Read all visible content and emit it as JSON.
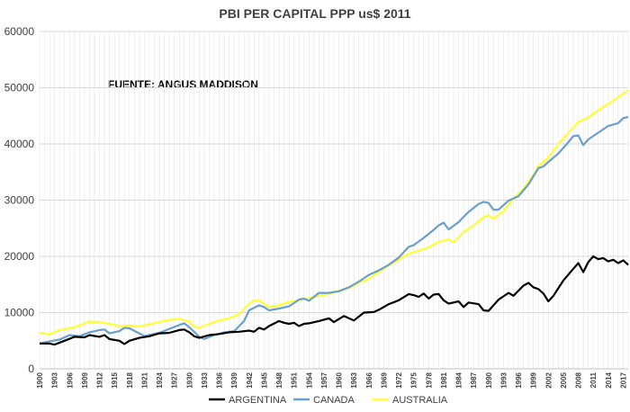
{
  "chart_data": {
    "type": "line",
    "title": "PBI PER CAPITAL PPP us$ 2011",
    "annotation": "FUENTE: ANGUS MADDISON",
    "xlabel": "",
    "ylabel": "",
    "ylim": [
      0,
      60000
    ],
    "yticks": [
      0,
      10000,
      20000,
      30000,
      40000,
      50000,
      60000
    ],
    "xlim": [
      1900,
      2018
    ],
    "xticks": [
      1900,
      1903,
      1906,
      1909,
      1912,
      1915,
      1918,
      1921,
      1924,
      1927,
      1930,
      1933,
      1936,
      1939,
      1942,
      1945,
      1948,
      1951,
      1954,
      1957,
      1960,
      1963,
      1966,
      1969,
      1972,
      1975,
      1978,
      1981,
      1984,
      1987,
      1990,
      1993,
      1996,
      1999,
      2002,
      2005,
      2008,
      2011,
      2014,
      2017
    ],
    "grid": "horizontal and vertical",
    "legend_position": "bottom",
    "series": [
      {
        "name": "ARGENTINA",
        "color": "#000000",
        "points": [
          [
            1900,
            4500
          ],
          [
            1902,
            4500
          ],
          [
            1903,
            4300
          ],
          [
            1905,
            5000
          ],
          [
            1907,
            5700
          ],
          [
            1909,
            5600
          ],
          [
            1910,
            6000
          ],
          [
            1912,
            5700
          ],
          [
            1913,
            6000
          ],
          [
            1914,
            5300
          ],
          [
            1916,
            5000
          ],
          [
            1917,
            4400
          ],
          [
            1918,
            5000
          ],
          [
            1920,
            5500
          ],
          [
            1922,
            5800
          ],
          [
            1924,
            6300
          ],
          [
            1926,
            6400
          ],
          [
            1928,
            6900
          ],
          [
            1929,
            7000
          ],
          [
            1930,
            6500
          ],
          [
            1931,
            5800
          ],
          [
            1932,
            5500
          ],
          [
            1934,
            6000
          ],
          [
            1936,
            6200
          ],
          [
            1938,
            6500
          ],
          [
            1940,
            6600
          ],
          [
            1942,
            6800
          ],
          [
            1943,
            6600
          ],
          [
            1944,
            7300
          ],
          [
            1945,
            7000
          ],
          [
            1946,
            7600
          ],
          [
            1948,
            8500
          ],
          [
            1949,
            8200
          ],
          [
            1950,
            8000
          ],
          [
            1951,
            8200
          ],
          [
            1952,
            7600
          ],
          [
            1953,
            8000
          ],
          [
            1954,
            8100
          ],
          [
            1956,
            8500
          ],
          [
            1958,
            9000
          ],
          [
            1959,
            8300
          ],
          [
            1961,
            9400
          ],
          [
            1962,
            9000
          ],
          [
            1963,
            8600
          ],
          [
            1965,
            10000
          ],
          [
            1967,
            10100
          ],
          [
            1968,
            10500
          ],
          [
            1970,
            11500
          ],
          [
            1972,
            12200
          ],
          [
            1974,
            13300
          ],
          [
            1975,
            13100
          ],
          [
            1976,
            12800
          ],
          [
            1977,
            13400
          ],
          [
            1978,
            12500
          ],
          [
            1979,
            13200
          ],
          [
            1980,
            13300
          ],
          [
            1981,
            12200
          ],
          [
            1982,
            11600
          ],
          [
            1984,
            12000
          ],
          [
            1985,
            11000
          ],
          [
            1986,
            11800
          ],
          [
            1988,
            11500
          ],
          [
            1989,
            10400
          ],
          [
            1990,
            10300
          ],
          [
            1992,
            12300
          ],
          [
            1994,
            13500
          ],
          [
            1995,
            13000
          ],
          [
            1997,
            14800
          ],
          [
            1998,
            15300
          ],
          [
            1999,
            14500
          ],
          [
            2000,
            14200
          ],
          [
            2001,
            13400
          ],
          [
            2002,
            12000
          ],
          [
            2003,
            13000
          ],
          [
            2005,
            15700
          ],
          [
            2007,
            17800
          ],
          [
            2008,
            18800
          ],
          [
            2009,
            17200
          ],
          [
            2010,
            19000
          ],
          [
            2011,
            20000
          ],
          [
            2012,
            19500
          ],
          [
            2013,
            19700
          ],
          [
            2014,
            19100
          ],
          [
            2015,
            19400
          ],
          [
            2016,
            18800
          ],
          [
            2017,
            19300
          ],
          [
            2018,
            18500
          ]
        ]
      },
      {
        "name": "CANADA",
        "color": "#6a9fcb",
        "points": [
          [
            1900,
            4500
          ],
          [
            1902,
            4900
          ],
          [
            1904,
            5200
          ],
          [
            1906,
            6000
          ],
          [
            1908,
            5800
          ],
          [
            1910,
            6500
          ],
          [
            1912,
            6900
          ],
          [
            1913,
            7000
          ],
          [
            1914,
            6300
          ],
          [
            1916,
            6700
          ],
          [
            1917,
            7300
          ],
          [
            1918,
            7200
          ],
          [
            1920,
            6300
          ],
          [
            1921,
            5800
          ],
          [
            1922,
            6000
          ],
          [
            1924,
            6400
          ],
          [
            1926,
            7100
          ],
          [
            1928,
            7800
          ],
          [
            1929,
            8100
          ],
          [
            1930,
            7400
          ],
          [
            1931,
            6600
          ],
          [
            1932,
            5700
          ],
          [
            1933,
            5300
          ],
          [
            1935,
            6000
          ],
          [
            1937,
            6500
          ],
          [
            1939,
            6700
          ],
          [
            1941,
            8500
          ],
          [
            1942,
            10400
          ],
          [
            1944,
            11300
          ],
          [
            1945,
            11000
          ],
          [
            1946,
            10400
          ],
          [
            1948,
            10700
          ],
          [
            1950,
            11100
          ],
          [
            1952,
            12300
          ],
          [
            1953,
            12500
          ],
          [
            1954,
            12100
          ],
          [
            1956,
            13500
          ],
          [
            1958,
            13500
          ],
          [
            1960,
            13800
          ],
          [
            1962,
            14500
          ],
          [
            1964,
            15500
          ],
          [
            1966,
            16700
          ],
          [
            1968,
            17500
          ],
          [
            1970,
            18500
          ],
          [
            1972,
            19800
          ],
          [
            1974,
            21700
          ],
          [
            1975,
            22000
          ],
          [
            1977,
            23300
          ],
          [
            1979,
            24700
          ],
          [
            1980,
            25500
          ],
          [
            1981,
            26000
          ],
          [
            1982,
            24800
          ],
          [
            1984,
            26100
          ],
          [
            1986,
            27900
          ],
          [
            1988,
            29300
          ],
          [
            1989,
            29700
          ],
          [
            1990,
            29500
          ],
          [
            1991,
            28300
          ],
          [
            1992,
            28300
          ],
          [
            1994,
            29900
          ],
          [
            1996,
            30700
          ],
          [
            1998,
            32800
          ],
          [
            2000,
            35700
          ],
          [
            2001,
            36000
          ],
          [
            2002,
            36800
          ],
          [
            2004,
            38300
          ],
          [
            2006,
            40300
          ],
          [
            2007,
            41400
          ],
          [
            2008,
            41500
          ],
          [
            2009,
            39800
          ],
          [
            2010,
            40800
          ],
          [
            2012,
            42000
          ],
          [
            2014,
            43200
          ],
          [
            2016,
            43700
          ],
          [
            2017,
            44600
          ],
          [
            2018,
            44800
          ]
        ]
      },
      {
        "name": "AUSTRALIA",
        "color": "#ffff33",
        "points": [
          [
            1900,
            6400
          ],
          [
            1902,
            6100
          ],
          [
            1904,
            6900
          ],
          [
            1906,
            7200
          ],
          [
            1908,
            7700
          ],
          [
            1910,
            8400
          ],
          [
            1912,
            8300
          ],
          [
            1914,
            8000
          ],
          [
            1916,
            7600
          ],
          [
            1918,
            7700
          ],
          [
            1920,
            7500
          ],
          [
            1922,
            7900
          ],
          [
            1924,
            8300
          ],
          [
            1926,
            8700
          ],
          [
            1928,
            8900
          ],
          [
            1930,
            8400
          ],
          [
            1931,
            7500
          ],
          [
            1932,
            7300
          ],
          [
            1934,
            8000
          ],
          [
            1936,
            8600
          ],
          [
            1938,
            9000
          ],
          [
            1940,
            9700
          ],
          [
            1942,
            11600
          ],
          [
            1943,
            12200
          ],
          [
            1944,
            12200
          ],
          [
            1946,
            11000
          ],
          [
            1948,
            11300
          ],
          [
            1950,
            11900
          ],
          [
            1952,
            12200
          ],
          [
            1954,
            12600
          ],
          [
            1956,
            13000
          ],
          [
            1958,
            13300
          ],
          [
            1960,
            13900
          ],
          [
            1962,
            14300
          ],
          [
            1964,
            15300
          ],
          [
            1966,
            16000
          ],
          [
            1968,
            17200
          ],
          [
            1970,
            18400
          ],
          [
            1972,
            19400
          ],
          [
            1974,
            20500
          ],
          [
            1976,
            21000
          ],
          [
            1978,
            21600
          ],
          [
            1980,
            22600
          ],
          [
            1982,
            23000
          ],
          [
            1983,
            22500
          ],
          [
            1985,
            24300
          ],
          [
            1987,
            25500
          ],
          [
            1989,
            27000
          ],
          [
            1990,
            27300
          ],
          [
            1991,
            26700
          ],
          [
            1993,
            28000
          ],
          [
            1995,
            30300
          ],
          [
            1997,
            32000
          ],
          [
            1999,
            34500
          ],
          [
            2000,
            36000
          ],
          [
            2002,
            37600
          ],
          [
            2004,
            39900
          ],
          [
            2006,
            42000
          ],
          [
            2008,
            43900
          ],
          [
            2010,
            44700
          ],
          [
            2012,
            46000
          ],
          [
            2014,
            47100
          ],
          [
            2016,
            48300
          ],
          [
            2018,
            49600
          ]
        ]
      }
    ]
  }
}
